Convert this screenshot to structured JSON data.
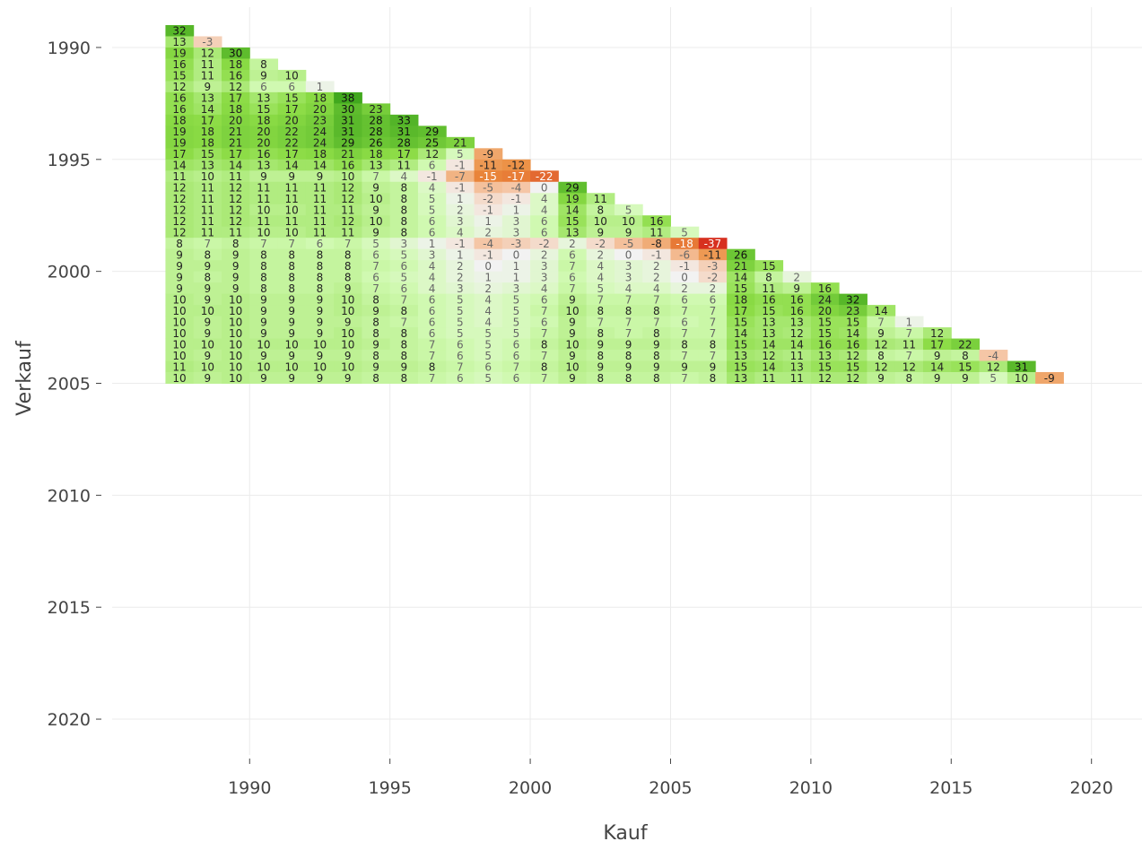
{
  "chart_data": {
    "type": "heatmap",
    "xlabel": "Kauf",
    "ylabel": "Verkauf",
    "x_ticks": [
      1990,
      1995,
      2000,
      2005,
      2010,
      2015,
      2020
    ],
    "y_ticks": [
      1990,
      1995,
      2000,
      2005,
      2010,
      2015,
      2020
    ],
    "x_start": 1987.5,
    "y_start": 1989.25,
    "x_step": 1,
    "y_step": 0.5,
    "x_range": [
      1985.1,
      2021.8
    ],
    "y_range": [
      1988.2,
      2021.6
    ],
    "colors": {
      "neg": "#d7301f",
      "neutral": "#f2f2f2",
      "pos": "#41a81e"
    },
    "rows": [
      [
        32
      ],
      [
        13,
        -3
      ],
      [
        19,
        12,
        30
      ],
      [
        16,
        11,
        18,
        8
      ],
      [
        15,
        11,
        16,
        9,
        10
      ],
      [
        12,
        9,
        12,
        6,
        6,
        1
      ],
      [
        16,
        13,
        17,
        13,
        15,
        18,
        38
      ],
      [
        16,
        14,
        18,
        15,
        17,
        20,
        30,
        23
      ],
      [
        18,
        17,
        20,
        18,
        20,
        23,
        31,
        28,
        33
      ],
      [
        19,
        18,
        21,
        20,
        22,
        24,
        31,
        28,
        31,
        29
      ],
      [
        19,
        18,
        21,
        20,
        22,
        24,
        29,
        26,
        28,
        25,
        21
      ],
      [
        17,
        15,
        17,
        16,
        17,
        18,
        21,
        18,
        17,
        12,
        5,
        -9
      ],
      [
        14,
        13,
        14,
        13,
        14,
        14,
        16,
        13,
        11,
        6,
        -1,
        -11,
        -12
      ],
      [
        11,
        10,
        11,
        9,
        9,
        9,
        10,
        7,
        4,
        -1,
        -7,
        -15,
        -17,
        -22
      ],
      [
        12,
        11,
        12,
        11,
        11,
        11,
        12,
        9,
        8,
        4,
        -1,
        -5,
        -4,
        0,
        29
      ],
      [
        12,
        11,
        12,
        11,
        11,
        11,
        12,
        10,
        8,
        5,
        1,
        -2,
        -1,
        4,
        19,
        11
      ],
      [
        12,
        11,
        12,
        10,
        10,
        11,
        11,
        9,
        8,
        5,
        2,
        -1,
        1,
        4,
        14,
        8,
        5
      ],
      [
        12,
        11,
        12,
        11,
        11,
        11,
        12,
        10,
        8,
        6,
        3,
        1,
        3,
        6,
        15,
        10,
        10,
        16
      ],
      [
        12,
        11,
        11,
        10,
        10,
        11,
        11,
        9,
        8,
        6,
        4,
        2,
        3,
        6,
        13,
        9,
        9,
        11,
        5
      ],
      [
        8,
        7,
        8,
        7,
        7,
        6,
        7,
        5,
        3,
        1,
        -1,
        -4,
        -3,
        -2,
        2,
        -2,
        -5,
        -8,
        -18,
        -37
      ],
      [
        9,
        8,
        9,
        8,
        8,
        8,
        8,
        6,
        5,
        3,
        1,
        -1,
        0,
        2,
        6,
        2,
        0,
        -1,
        -6,
        -11,
        26
      ],
      [
        9,
        9,
        9,
        8,
        8,
        8,
        8,
        7,
        6,
        4,
        2,
        0,
        1,
        3,
        7,
        4,
        3,
        2,
        -1,
        -3,
        21,
        15
      ],
      [
        9,
        8,
        9,
        8,
        8,
        8,
        8,
        6,
        5,
        4,
        2,
        1,
        1,
        3,
        6,
        4,
        3,
        2,
        0,
        -2,
        14,
        8,
        2
      ],
      [
        9,
        9,
        9,
        8,
        8,
        8,
        9,
        7,
        6,
        4,
        3,
        2,
        3,
        4,
        7,
        5,
        4,
        4,
        2,
        2,
        15,
        11,
        9,
        16
      ],
      [
        10,
        9,
        10,
        9,
        9,
        9,
        10,
        8,
        7,
        6,
        5,
        4,
        5,
        6,
        9,
        7,
        7,
        7,
        6,
        6,
        18,
        16,
        16,
        24,
        32
      ],
      [
        10,
        10,
        10,
        9,
        9,
        9,
        10,
        9,
        8,
        6,
        5,
        4,
        5,
        7,
        10,
        8,
        8,
        8,
        7,
        7,
        17,
        15,
        16,
        20,
        23,
        14
      ],
      [
        10,
        9,
        10,
        9,
        9,
        9,
        9,
        8,
        7,
        6,
        5,
        4,
        5,
        6,
        9,
        7,
        7,
        7,
        6,
        7,
        15,
        13,
        13,
        15,
        15,
        7,
        1
      ],
      [
        10,
        9,
        10,
        9,
        9,
        9,
        10,
        8,
        8,
        6,
        5,
        5,
        5,
        7,
        9,
        8,
        7,
        8,
        7,
        7,
        14,
        13,
        12,
        15,
        14,
        9,
        7,
        12
      ],
      [
        10,
        10,
        10,
        10,
        10,
        10,
        10,
        9,
        8,
        7,
        6,
        5,
        6,
        8,
        10,
        9,
        9,
        9,
        8,
        8,
        15,
        14,
        14,
        16,
        16,
        12,
        11,
        17,
        22
      ],
      [
        10,
        9,
        10,
        9,
        9,
        9,
        9,
        8,
        8,
        7,
        6,
        5,
        6,
        7,
        9,
        8,
        8,
        8,
        7,
        7,
        13,
        12,
        11,
        13,
        12,
        8,
        7,
        9,
        8,
        -4
      ],
      [
        11,
        10,
        10,
        10,
        10,
        10,
        10,
        9,
        9,
        8,
        7,
        6,
        7,
        8,
        10,
        9,
        9,
        9,
        9,
        9,
        15,
        14,
        13,
        15,
        15,
        12,
        12,
        14,
        15,
        12,
        31
      ],
      [
        10,
        9,
        10,
        9,
        9,
        9,
        9,
        8,
        8,
        7,
        6,
        5,
        6,
        7,
        9,
        8,
        8,
        8,
        7,
        8,
        13,
        11,
        11,
        12,
        12,
        9,
        8,
        9,
        9,
        5,
        10,
        -9
      ]
    ]
  }
}
